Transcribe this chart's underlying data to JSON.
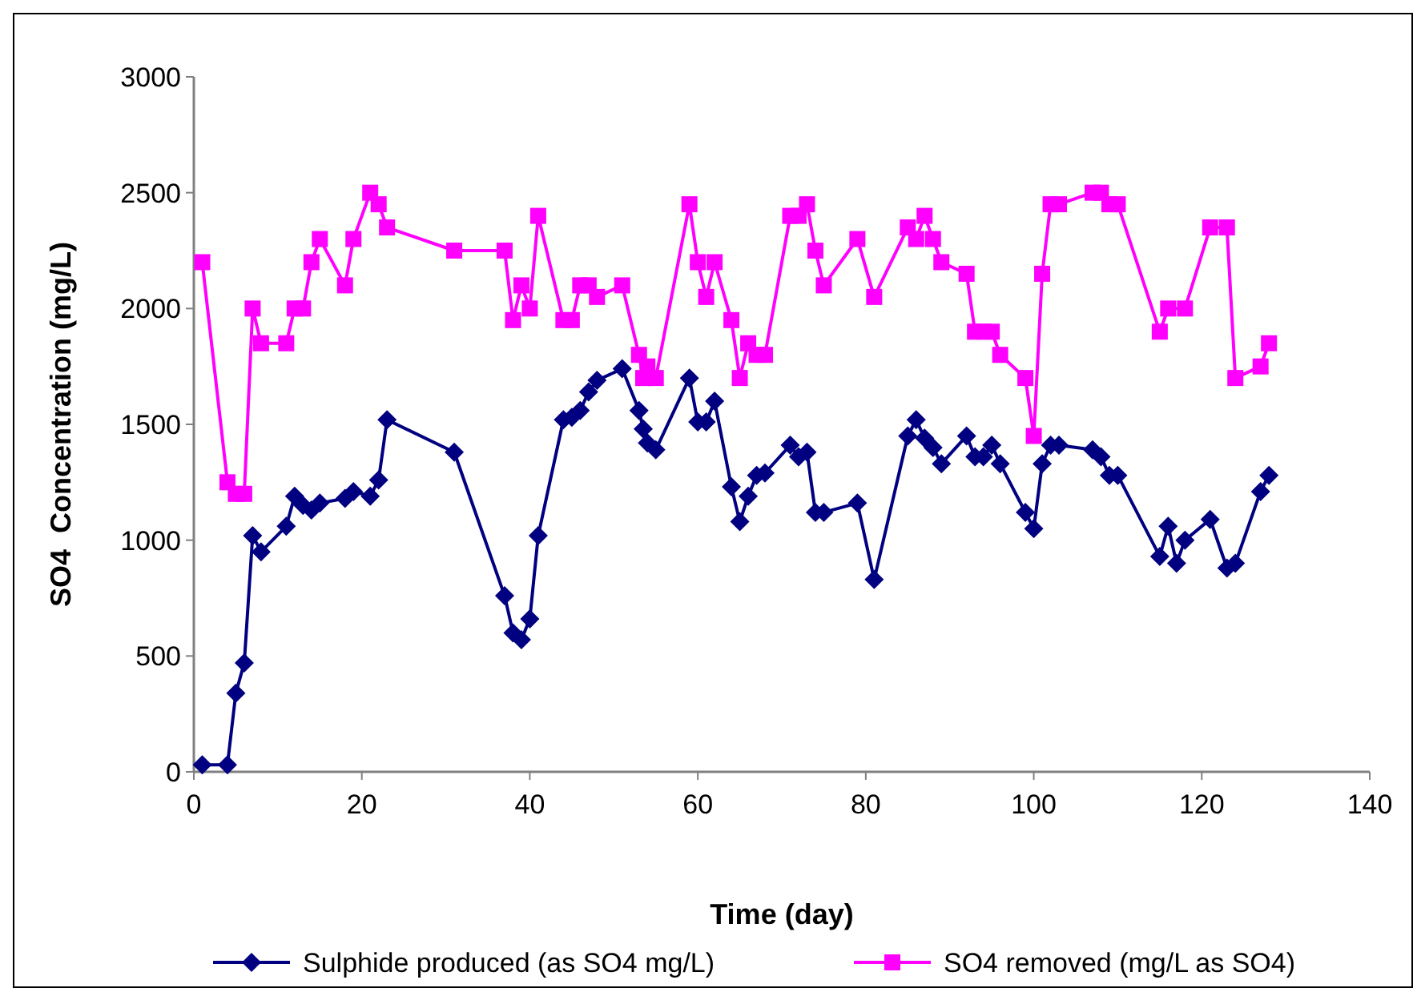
{
  "chart_data": {
    "type": "line",
    "xlabel": "Time (day)",
    "ylabel": "SO4  Concentration (mg/L)",
    "xlim": [
      0,
      140
    ],
    "xticks": [
      0,
      20,
      40,
      60,
      80,
      100,
      120,
      140
    ],
    "ylim": [
      0,
      3000
    ],
    "yticks": [
      0,
      500,
      1000,
      1500,
      2000,
      2500,
      3000
    ],
    "grid": false,
    "legend": "bottom",
    "series": [
      {
        "name": "Sulphide produced (as SO4 mg/L)",
        "color": "#000080",
        "marker": "diamond",
        "x": [
          1,
          4,
          5,
          6,
          7,
          8,
          11,
          12,
          13,
          14,
          15,
          18,
          19,
          21,
          22,
          23,
          31,
          37,
          38,
          39,
          40,
          41,
          44,
          45,
          46,
          47,
          48,
          51,
          53,
          53.5,
          54,
          55,
          59,
          60,
          61,
          62,
          64,
          65,
          66,
          67,
          68,
          71,
          72,
          73,
          74,
          75,
          79,
          81,
          85,
          86,
          87,
          88,
          89,
          92,
          93,
          94,
          95,
          96,
          99,
          100,
          101,
          102,
          103,
          107,
          108,
          109,
          110,
          115,
          116,
          117,
          118,
          121,
          123,
          124,
          127,
          128
        ],
        "values": [
          30,
          30,
          340,
          470,
          1020,
          950,
          1060,
          1190,
          1150,
          1130,
          1160,
          1180,
          1210,
          1190,
          1260,
          1520,
          1380,
          760,
          600,
          570,
          660,
          1020,
          1520,
          1530,
          1560,
          1640,
          1690,
          1740,
          1560,
          1480,
          1420,
          1390,
          1700,
          1510,
          1510,
          1600,
          1230,
          1080,
          1190,
          1280,
          1290,
          1410,
          1360,
          1380,
          1120,
          1120,
          1160,
          830,
          1450,
          1520,
          1440,
          1400,
          1330,
          1450,
          1360,
          1360,
          1410,
          1330,
          1120,
          1050,
          1330,
          1410,
          1410,
          1390,
          1360,
          1280,
          1280,
          930,
          1060,
          900,
          1000,
          1090,
          880,
          900,
          1210,
          1280
        ]
      },
      {
        "name": "SO4 removed (mg/L as SO4)",
        "color": "#ff00ff",
        "marker": "square",
        "x": [
          1,
          4,
          5,
          6,
          7,
          8,
          11,
          12,
          13,
          14,
          15,
          18,
          19,
          21,
          22,
          23,
          31,
          37,
          38,
          39,
          40,
          41,
          44,
          45,
          46,
          47,
          48,
          51,
          53,
          53.5,
          54,
          55,
          59,
          60,
          61,
          62,
          64,
          65,
          66,
          67,
          68,
          71,
          72,
          73,
          74,
          75,
          79,
          81,
          85,
          86,
          87,
          88,
          89,
          92,
          93,
          94,
          95,
          96,
          99,
          100,
          101,
          102,
          103,
          107,
          108,
          109,
          110,
          115,
          116,
          118,
          121,
          123,
          124,
          127,
          128
        ],
        "values": [
          2200,
          1250,
          1200,
          1200,
          2000,
          1850,
          1850,
          2000,
          2000,
          2200,
          2300,
          2100,
          2300,
          2500,
          2450,
          2350,
          2250,
          2250,
          1950,
          2100,
          2000,
          2400,
          1950,
          1950,
          2100,
          2100,
          2050,
          2100,
          1800,
          1700,
          1750,
          1700,
          2450,
          2200,
          2050,
          2200,
          1950,
          1700,
          1850,
          1800,
          1800,
          2400,
          2400,
          2450,
          2250,
          2100,
          2300,
          2050,
          2350,
          2300,
          2400,
          2300,
          2200,
          2150,
          1900,
          1900,
          1900,
          1800,
          1700,
          1450,
          2150,
          2450,
          2450,
          2500,
          2500,
          2450,
          2450,
          1900,
          2000,
          2000,
          2350,
          2350,
          1700,
          1750,
          1850
        ]
      }
    ]
  }
}
